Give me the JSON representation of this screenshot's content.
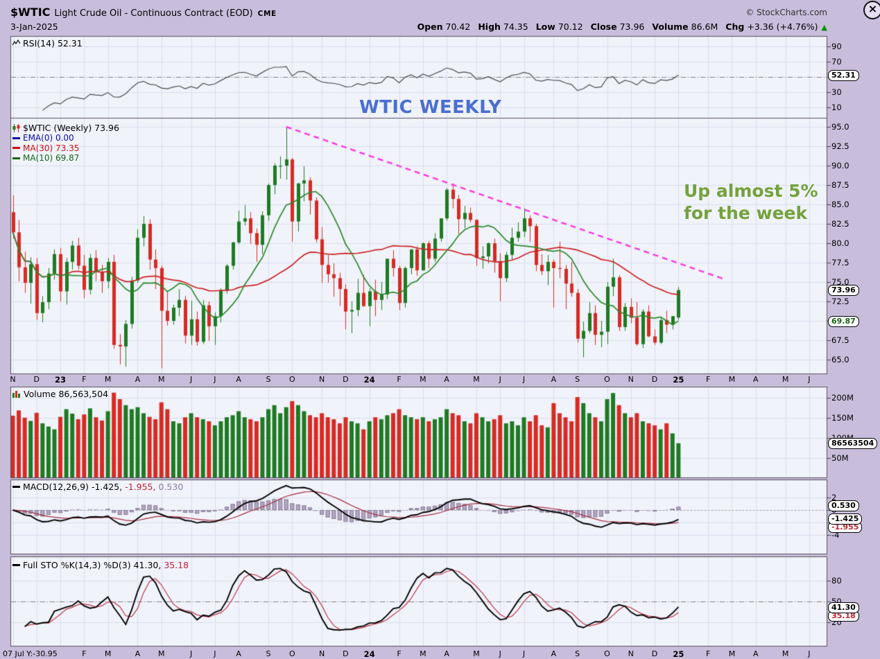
{
  "header": {
    "symbol": "$WTIC",
    "title": "Light Crude Oil - Continuous Contract (EOD)",
    "exchange": "CME",
    "copyright": "© StockCharts.com",
    "date": "3-Jan-2025",
    "close_label": "×",
    "quote": [
      {
        "label": "Open",
        "value": "70.42"
      },
      {
        "label": "High",
        "value": "74.35"
      },
      {
        "label": "Low",
        "value": "70.12"
      },
      {
        "label": "Close",
        "value": "73.96"
      },
      {
        "label": "Volume",
        "value": "86.6M"
      },
      {
        "label": "Chg",
        "value": "+3.36 (+4.76%)"
      }
    ],
    "change_direction_icon": "▲"
  },
  "rsi_panel": {
    "label": "RSI(14) 52.31",
    "ticks": [
      "90",
      "70",
      "50",
      "30",
      "10"
    ],
    "value_box": "52.31"
  },
  "price_panel": {
    "label": "$WTIC (Weekly) 73.96",
    "legend": [
      {
        "text": "EMA(0) 0.00",
        "color": "#0a0aa8"
      },
      {
        "text": "MA(30) 73.35",
        "color": "#cc1111"
      },
      {
        "text": "MA(10) 69.87",
        "color": "#156615"
      }
    ],
    "ticks": [
      "95.0",
      "92.5",
      "90.0",
      "87.5",
      "85.0",
      "82.5",
      "80.0",
      "77.5",
      "75.0",
      "72.5",
      "70.0",
      "67.5",
      "65.0"
    ],
    "annotation_center": "WTIC WEEKLY",
    "annotation_right": [
      "Up almost 5%",
      "for the week"
    ],
    "close_box": "73.96",
    "ma10_box": "69.87"
  },
  "volume_panel": {
    "label": "Volume 86,563,504",
    "ticks": [
      "200M",
      "150M",
      "100M",
      "50M"
    ],
    "value_box": "86563504"
  },
  "macd_panel": {
    "label_prefix": "MACD(12,26,9)",
    "value_macd": "-1.425,",
    "value_signal": "-1.955,",
    "value_hist": "0.530",
    "ticks": [
      "2",
      "0",
      "-2",
      "-4"
    ],
    "macd_box": "-1.425",
    "signal_box": "-1.955",
    "hist_box": "0.530"
  },
  "sto_panel": {
    "label_prefix": "Full STO %K(14,3) %D(3)",
    "value_k": "41.30,",
    "value_d": "35.18",
    "ticks": [
      "80",
      "50",
      "20"
    ],
    "k_box": "41.30",
    "d_box": "35.18"
  },
  "xaxis": {
    "bottom_left_text": "07 Jul Y:-30.95",
    "months": [
      {
        "label": "N",
        "week": 0
      },
      {
        "label": "D",
        "week": 4
      },
      {
        "label": "23",
        "week": 8,
        "bold": true
      },
      {
        "label": "F",
        "week": 12
      },
      {
        "label": "M",
        "week": 16
      },
      {
        "label": "A",
        "week": 21
      },
      {
        "label": "M",
        "week": 25
      },
      {
        "label": "J",
        "week": 30
      },
      {
        "label": "J",
        "week": 34
      },
      {
        "label": "A",
        "week": 38
      },
      {
        "label": "S",
        "week": 43
      },
      {
        "label": "O",
        "week": 47
      },
      {
        "label": "N",
        "week": 52
      },
      {
        "label": "D",
        "week": 56
      },
      {
        "label": "24",
        "week": 60,
        "bold": true
      },
      {
        "label": "F",
        "week": 65
      },
      {
        "label": "M",
        "week": 69
      },
      {
        "label": "A",
        "week": 73
      },
      {
        "label": "M",
        "week": 78
      },
      {
        "label": "J",
        "week": 82
      },
      {
        "label": "J",
        "week": 86
      },
      {
        "label": "A",
        "week": 91
      },
      {
        "label": "S",
        "week": 95
      },
      {
        "label": "O",
        "week": 100
      },
      {
        "label": "N",
        "week": 104
      },
      {
        "label": "D",
        "week": 108
      },
      {
        "label": "25",
        "week": 112,
        "bold": true
      },
      {
        "label": "F",
        "week": 117
      },
      {
        "label": "M",
        "week": 121
      },
      {
        "label": "A",
        "week": 125
      },
      {
        "label": "M",
        "week": 130
      },
      {
        "label": "J",
        "week": 134
      }
    ]
  },
  "chart_data": {
    "type": "candlestick",
    "symbol": "$WTIC",
    "period": "weekly",
    "range": "Nov 2022 - Jan 2025",
    "title": "WTIC WEEKLY",
    "price_axis": {
      "min": 65.0,
      "max": 95.0,
      "step": 2.5
    },
    "volume_axis_millions": [
      200,
      150,
      100,
      50
    ],
    "rsi_axis": [
      90,
      70,
      50,
      30,
      10
    ],
    "macd_axis": [
      2,
      0,
      -2,
      -4
    ],
    "sto_axis": [
      80,
      50,
      20
    ],
    "last_bar": {
      "date": "3-Jan-2025",
      "open": 70.42,
      "high": 74.35,
      "low": 70.12,
      "close": 73.96,
      "volume": "86.6M",
      "change": "+3.36 (+4.76%)"
    },
    "overlays": {
      "ema_label": "EMA(0) 0.00",
      "ma30_last": 73.35,
      "ma10_last": 69.87
    },
    "indicators": {
      "rsi14_last": 52.31,
      "macd_12_26_9": {
        "macd": -1.425,
        "signal": -1.955,
        "hist": 0.53
      },
      "full_sto_14_3_3": {
        "k": 41.3,
        "d": 35.18
      }
    },
    "trendline": {
      "style": "dashed",
      "color": "#fb35e2",
      "from_week": 46,
      "from_price": 95.0,
      "to_week": 120,
      "to_price": 75.3
    },
    "colors": {
      "up": "#1e7a23",
      "down": "#d62b24",
      "ma30_line": "#cc2222",
      "ma10_line": "#2c8a2c",
      "macd_line": "#000000",
      "macd_signal": "#a52a3c",
      "macd_hist": "#b2a6c2",
      "sto_k": "#000000",
      "sto_d": "#c03344",
      "rsi_line": "#4a4a4a",
      "up_annotation": "#74a23c",
      "title_annotation": "#4a6fd0"
    },
    "candles_ohlc": [
      [
        84.0,
        86.2,
        80.6,
        81.4
      ],
      [
        81.4,
        83.0,
        75.1,
        76.9
      ],
      [
        76.9,
        78.9,
        73.6,
        74.9
      ],
      [
        74.9,
        78.2,
        72.2,
        77.3
      ],
      [
        77.3,
        78.1,
        70.1,
        71.0
      ],
      [
        71.0,
        73.2,
        69.8,
        72.4
      ],
      [
        72.4,
        76.8,
        71.5,
        76.1
      ],
      [
        76.1,
        79.2,
        75.3,
        78.6
      ],
      [
        78.6,
        79.4,
        72.5,
        73.8
      ],
      [
        73.8,
        78.1,
        72.1,
        77.6
      ],
      [
        77.6,
        80.3,
        76.6,
        79.7
      ],
      [
        79.7,
        80.7,
        76.6,
        77.1
      ],
      [
        77.1,
        78.5,
        72.9,
        74.0
      ],
      [
        74.0,
        78.6,
        73.4,
        78.1
      ],
      [
        78.1,
        79.1,
        75.1,
        76.3
      ],
      [
        76.3,
        77.2,
        73.6,
        75.1
      ],
      [
        75.1,
        78.1,
        74.2,
        77.6
      ],
      [
        77.6,
        78.5,
        66.4,
        66.9
      ],
      [
        66.9,
        68.3,
        64.4,
        66.7
      ],
      [
        66.7,
        70.1,
        64.1,
        69.6
      ],
      [
        69.6,
        75.7,
        69.0,
        75.2
      ],
      [
        75.2,
        81.8,
        74.9,
        80.7
      ],
      [
        80.7,
        83.5,
        79.6,
        82.5
      ],
      [
        82.5,
        83.1,
        76.6,
        77.9
      ],
      [
        77.9,
        79.2,
        74.1,
        76.8
      ],
      [
        76.8,
        77.1,
        63.9,
        71.3
      ],
      [
        71.3,
        73.7,
        69.4,
        70.0
      ],
      [
        70.0,
        72.1,
        69.5,
        71.7
      ],
      [
        71.7,
        74.1,
        70.6,
        72.7
      ],
      [
        72.7,
        73.2,
        67.1,
        68.1
      ],
      [
        68.1,
        72.6,
        66.9,
        70.2
      ],
      [
        70.2,
        71.2,
        66.8,
        67.3
      ],
      [
        67.3,
        72.7,
        67.0,
        72.0
      ],
      [
        72.0,
        72.5,
        67.4,
        69.3
      ],
      [
        69.3,
        71.1,
        66.9,
        70.6
      ],
      [
        70.6,
        74.2,
        69.8,
        73.9
      ],
      [
        73.9,
        77.3,
        73.5,
        77.1
      ],
      [
        77.1,
        80.2,
        76.6,
        80.1
      ],
      [
        80.1,
        84.2,
        79.9,
        82.8
      ],
      [
        82.8,
        84.9,
        82.3,
        83.2
      ],
      [
        83.2,
        84.0,
        79.9,
        81.3
      ],
      [
        81.3,
        81.9,
        77.6,
        79.8
      ],
      [
        79.8,
        84.1,
        78.6,
        83.6
      ],
      [
        83.6,
        87.7,
        82.9,
        87.5
      ],
      [
        87.5,
        90.3,
        86.3,
        90.0
      ],
      [
        90.0,
        91.2,
        88.3,
        90.0
      ],
      [
        90.0,
        95.0,
        88.2,
        90.8
      ],
      [
        90.8,
        91.0,
        80.2,
        82.8
      ],
      [
        82.8,
        87.8,
        81.5,
        87.7
      ],
      [
        87.7,
        89.9,
        85.4,
        88.1
      ],
      [
        88.1,
        88.5,
        83.7,
        85.5
      ],
      [
        85.5,
        85.9,
        80.1,
        80.5
      ],
      [
        80.5,
        82.1,
        74.9,
        77.2
      ],
      [
        77.2,
        78.5,
        74.9,
        76.0
      ],
      [
        76.0,
        77.4,
        73.1,
        75.5
      ],
      [
        75.5,
        76.2,
        71.9,
        74.1
      ],
      [
        74.1,
        74.7,
        68.9,
        71.2
      ],
      [
        71.2,
        72.5,
        68.4,
        71.4
      ],
      [
        71.4,
        75.4,
        70.6,
        73.6
      ],
      [
        73.6,
        75.9,
        71.8,
        71.9
      ],
      [
        71.9,
        74.2,
        69.3,
        73.8
      ],
      [
        73.8,
        75.3,
        70.6,
        72.7
      ],
      [
        72.7,
        75.0,
        71.4,
        73.4
      ],
      [
        73.4,
        78.0,
        72.8,
        78.0
      ],
      [
        78.0,
        79.1,
        75.7,
        76.8
      ],
      [
        76.8,
        77.1,
        71.4,
        72.3
      ],
      [
        72.3,
        77.0,
        71.7,
        76.8
      ],
      [
        76.8,
        79.2,
        76.0,
        79.2
      ],
      [
        79.2,
        79.6,
        75.8,
        76.5
      ],
      [
        76.5,
        80.1,
        76.5,
        80.0
      ],
      [
        80.0,
        80.3,
        76.8,
        78.0
      ],
      [
        78.0,
        81.3,
        77.6,
        80.6
      ],
      [
        80.6,
        83.2,
        80.2,
        83.2
      ],
      [
        83.2,
        87.1,
        82.9,
        86.9
      ],
      [
        86.9,
        87.7,
        84.5,
        85.7
      ],
      [
        85.7,
        86.2,
        81.2,
        83.1
      ],
      [
        83.1,
        84.8,
        81.9,
        83.9
      ],
      [
        83.9,
        84.6,
        82.7,
        83.0
      ],
      [
        83.0,
        83.1,
        77.1,
        78.1
      ],
      [
        78.1,
        79.6,
        76.7,
        78.3
      ],
      [
        78.3,
        80.1,
        77.4,
        80.0
      ],
      [
        80.0,
        80.6,
        76.2,
        77.7
      ],
      [
        77.7,
        78.7,
        72.5,
        75.5
      ],
      [
        75.5,
        78.9,
        75.0,
        78.5
      ],
      [
        78.5,
        82.0,
        77.8,
        80.7
      ],
      [
        80.7,
        82.7,
        80.2,
        81.5
      ],
      [
        81.5,
        84.5,
        80.8,
        83.2
      ],
      [
        83.2,
        83.6,
        80.2,
        82.2
      ],
      [
        82.2,
        82.5,
        76.4,
        77.2
      ],
      [
        77.2,
        78.6,
        75.9,
        76.4
      ],
      [
        76.4,
        78.5,
        74.6,
        77.6
      ],
      [
        77.6,
        77.9,
        71.7,
        76.8
      ],
      [
        76.8,
        80.2,
        75.5,
        76.7
      ],
      [
        76.7,
        77.2,
        71.5,
        74.8
      ],
      [
        74.8,
        77.6,
        73.1,
        73.6
      ],
      [
        73.6,
        74.1,
        67.2,
        67.7
      ],
      [
        67.7,
        69.9,
        65.3,
        68.7
      ],
      [
        68.7,
        72.4,
        68.4,
        71.0
      ],
      [
        71.0,
        72.0,
        66.9,
        68.2
      ],
      [
        68.2,
        70.0,
        66.6,
        68.6
      ],
      [
        68.6,
        75.0,
        67.0,
        74.4
      ],
      [
        74.4,
        78.0,
        73.2,
        75.6
      ],
      [
        75.6,
        75.9,
        68.7,
        69.2
      ],
      [
        69.2,
        72.3,
        68.7,
        71.8
      ],
      [
        71.8,
        72.9,
        69.7,
        70.4
      ],
      [
        70.4,
        72.4,
        66.8,
        67.0
      ],
      [
        67.0,
        71.5,
        66.5,
        71.2
      ],
      [
        71.2,
        72.0,
        67.9,
        68.0
      ],
      [
        68.0,
        68.9,
        66.9,
        67.2
      ],
      [
        67.2,
        70.5,
        67.0,
        70.1
      ],
      [
        70.1,
        71.3,
        68.4,
        69.5
      ],
      [
        69.5,
        70.6,
        68.9,
        70.6
      ],
      [
        70.42,
        74.35,
        70.12,
        73.96
      ]
    ],
    "volumes_millions": [
      155,
      168,
      150,
      142,
      162,
      136,
      128,
      121,
      152,
      171,
      160,
      146,
      158,
      173,
      151,
      143,
      166,
      212,
      196,
      181,
      171,
      176,
      161,
      152,
      146,
      188,
      171,
      141,
      136,
      151,
      161,
      151,
      146,
      141,
      131,
      141,
      151,
      156,
      166,
      151,
      146,
      141,
      151,
      171,
      181,
      161,
      176,
      191,
      181,
      166,
      156,
      151,
      161,
      151,
      146,
      136,
      151,
      141,
      136,
      121,
      141,
      151,
      146,
      156,
      161,
      171,
      156,
      151,
      146,
      151,
      141,
      146,
      151,
      171,
      161,
      156,
      141,
      136,
      161,
      151,
      141,
      146,
      156,
      136,
      141,
      131,
      151,
      141,
      156,
      131,
      126,
      186,
      161,
      151,
      141,
      201,
      186,
      161,
      151,
      141,
      196,
      211,
      181,
      161,
      151,
      161,
      141,
      136,
      131,
      121,
      136,
      111,
      86.6
    ]
  }
}
